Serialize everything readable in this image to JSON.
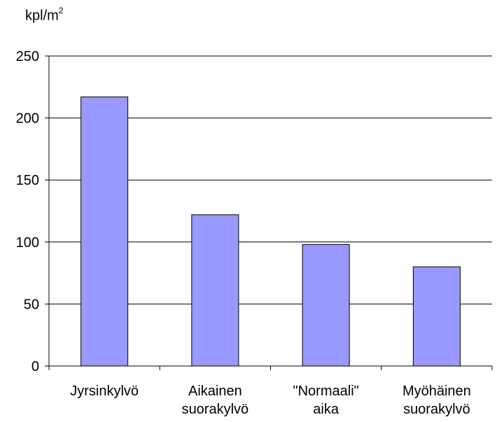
{
  "chart_data": {
    "type": "bar",
    "ylabel": "kpl/m",
    "ylabel_superscript": "2",
    "categories": [
      [
        "Jyrsinkylvö"
      ],
      [
        "Aikainen",
        "suorakylvö"
      ],
      [
        "\"Normaali\"",
        "aika"
      ],
      [
        "Myöhäinen",
        "suorakylvö"
      ]
    ],
    "values": [
      217,
      122,
      98,
      80
    ],
    "ylim": [
      0,
      250
    ],
    "yticks": [
      0,
      50,
      100,
      150,
      200,
      250
    ],
    "grid": true,
    "bar_color": "#9999ff",
    "bar_edge_color": "#000000",
    "legend": "none"
  }
}
